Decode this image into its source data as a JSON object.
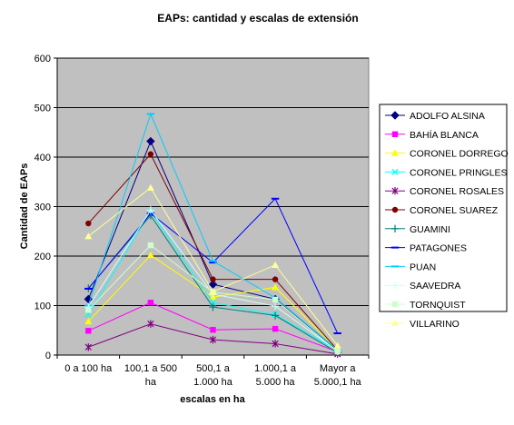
{
  "chart_data": {
    "type": "line",
    "title": "EAPs: cantidad y escalas de extensión",
    "xlabel": "escalas en ha",
    "ylabel": "Cantidad de EAPs",
    "ylim": [
      0,
      600
    ],
    "yticks": [
      0,
      100,
      200,
      300,
      400,
      500,
      600
    ],
    "grid": true,
    "legend": "right",
    "categories": [
      [
        "0 a 100 ha"
      ],
      [
        "100,1 a 500",
        "ha"
      ],
      [
        "500,1 a",
        "1.000 ha"
      ],
      [
        "1.000,1 a",
        "5.000 ha"
      ],
      [
        "Mayor a",
        "5.000,1 ha"
      ]
    ],
    "series": [
      {
        "name": "ADOLFO ALSINA",
        "color": "#000080",
        "marker": "diamond",
        "values": [
          113,
          432,
          143,
          113,
          8
        ]
      },
      {
        "name": "BAHÍA BLANCA",
        "color": "#ff00ff",
        "marker": "square",
        "values": [
          49,
          106,
          51,
          53,
          7
        ]
      },
      {
        "name": "CORONEL DORREGO",
        "color": "#ffff00",
        "marker": "triangle",
        "values": [
          68,
          202,
          117,
          137,
          11
        ]
      },
      {
        "name": "CORONEL PRINGLES",
        "color": "#00ffff",
        "marker": "x",
        "values": [
          82,
          290,
          106,
          82,
          9
        ]
      },
      {
        "name": "CORONEL ROSALES",
        "color": "#800080",
        "marker": "star",
        "values": [
          16,
          63,
          31,
          23,
          2
        ]
      },
      {
        "name": "CORONEL SUAREZ",
        "color": "#800000",
        "marker": "circle",
        "values": [
          266,
          406,
          153,
          153,
          10
        ]
      },
      {
        "name": "GUAMINI",
        "color": "#008080",
        "marker": "plus",
        "values": [
          135,
          282,
          97,
          80,
          5
        ]
      },
      {
        "name": "PATAGONES",
        "color": "#0000ff",
        "marker": "dash",
        "values": [
          134,
          286,
          187,
          316,
          44
        ]
      },
      {
        "name": "PUAN",
        "color": "#00ccff",
        "marker": "dash",
        "values": [
          100,
          487,
          190,
          116,
          10
        ]
      },
      {
        "name": "SAAVEDRA",
        "color": "#ccffff",
        "marker": "plus",
        "values": [
          97,
          293,
          123,
          99,
          8
        ]
      },
      {
        "name": "TORNQUIST",
        "color": "#ccffcc",
        "marker": "square",
        "values": [
          91,
          222,
          127,
          112,
          7
        ]
      },
      {
        "name": "VILLARINO",
        "color": "#ffff99",
        "marker": "triangle",
        "values": [
          240,
          338,
          128,
          182,
          19
        ]
      }
    ]
  }
}
